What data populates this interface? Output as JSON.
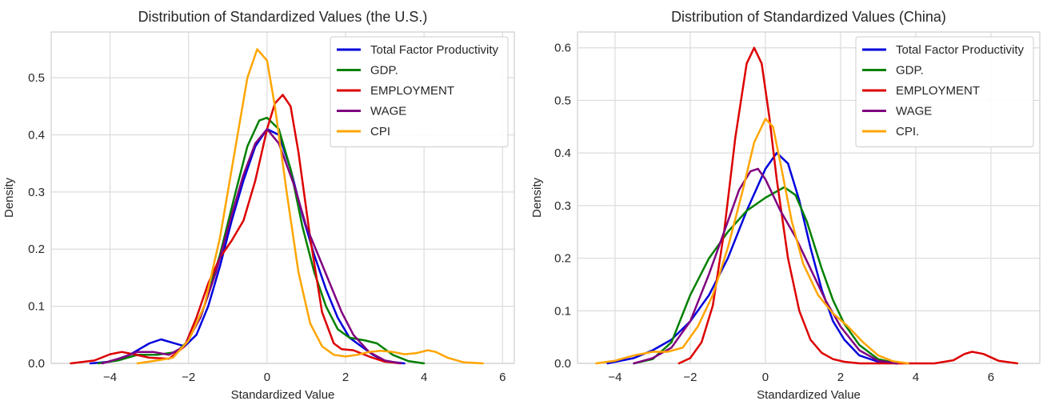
{
  "chart_data": [
    {
      "type": "line",
      "title": "Distribution of Standardized Values (the U.S.)",
      "xlabel": "Standardized Value",
      "ylabel": "Density",
      "xlim": [
        -5.5,
        6.3
      ],
      "ylim": [
        0,
        0.58
      ],
      "xticks": [
        -4,
        -2,
        0,
        2,
        4,
        6
      ],
      "xtick_labels": [
        "−4",
        "−2",
        "0",
        "2",
        "4",
        "6"
      ],
      "yticks": [
        0,
        0.1,
        0.2,
        0.3,
        0.4,
        0.5
      ],
      "ytick_labels": [
        "0.0",
        "0.1",
        "0.2",
        "0.3",
        "0.4",
        "0.5"
      ],
      "grid": true,
      "legend_position": "top-right",
      "series": [
        {
          "name": "Total Factor Productivity",
          "color": "#0000dd",
          "x": [
            -4.5,
            -4.0,
            -3.5,
            -3.0,
            -2.7,
            -2.4,
            -2.1,
            -1.8,
            -1.5,
            -1.2,
            -0.9,
            -0.6,
            -0.3,
            0.0,
            0.3,
            0.6,
            0.9,
            1.2,
            1.5,
            1.8,
            2.1,
            2.4,
            2.7,
            3.0,
            3.5
          ],
          "y": [
            0.0,
            0.003,
            0.015,
            0.035,
            0.042,
            0.036,
            0.03,
            0.05,
            0.1,
            0.17,
            0.25,
            0.32,
            0.38,
            0.41,
            0.4,
            0.34,
            0.26,
            0.19,
            0.13,
            0.08,
            0.045,
            0.03,
            0.015,
            0.004,
            0.0
          ]
        },
        {
          "name": "GDP.",
          "color": "#008000",
          "x": [
            -4.3,
            -3.8,
            -3.3,
            -2.8,
            -2.3,
            -2.0,
            -1.6,
            -1.2,
            -0.8,
            -0.5,
            -0.2,
            0.0,
            0.3,
            0.6,
            0.9,
            1.2,
            1.5,
            1.8,
            2.1,
            2.5,
            2.8,
            3.2,
            3.6,
            4.0
          ],
          "y": [
            0.0,
            0.005,
            0.015,
            0.015,
            0.02,
            0.04,
            0.1,
            0.19,
            0.3,
            0.38,
            0.425,
            0.43,
            0.41,
            0.34,
            0.24,
            0.16,
            0.1,
            0.06,
            0.045,
            0.04,
            0.035,
            0.015,
            0.004,
            0.0
          ]
        },
        {
          "name": "EMPLOYMENT",
          "color": "#dd0000",
          "x": [
            -5.0,
            -4.4,
            -4.0,
            -3.7,
            -3.4,
            -3.0,
            -2.5,
            -2.1,
            -1.8,
            -1.5,
            -1.2,
            -0.9,
            -0.6,
            -0.3,
            0.0,
            0.2,
            0.4,
            0.6,
            0.8,
            1.1,
            1.4,
            1.7,
            1.9,
            2.2,
            2.6,
            3.0,
            3.4
          ],
          "y": [
            0.0,
            0.005,
            0.016,
            0.02,
            0.016,
            0.01,
            0.008,
            0.03,
            0.08,
            0.14,
            0.185,
            0.215,
            0.25,
            0.32,
            0.41,
            0.455,
            0.47,
            0.45,
            0.37,
            0.22,
            0.09,
            0.035,
            0.025,
            0.023,
            0.012,
            0.003,
            0.0
          ]
        },
        {
          "name": "WAGE",
          "color": "#800080",
          "x": [
            -4.2,
            -3.7,
            -3.3,
            -2.9,
            -2.5,
            -2.1,
            -1.7,
            -1.3,
            -0.9,
            -0.6,
            -0.3,
            0.0,
            0.3,
            0.7,
            1.0,
            1.3,
            1.6,
            1.9,
            2.2,
            2.6,
            3.0,
            3.4
          ],
          "y": [
            0.0,
            0.01,
            0.02,
            0.02,
            0.015,
            0.03,
            0.08,
            0.16,
            0.26,
            0.33,
            0.385,
            0.41,
            0.385,
            0.31,
            0.24,
            0.19,
            0.14,
            0.09,
            0.05,
            0.02,
            0.005,
            0.0
          ]
        },
        {
          "name": "CPI",
          "color": "#ffa500",
          "x": [
            -3.3,
            -2.8,
            -2.4,
            -2.0,
            -1.6,
            -1.2,
            -0.8,
            -0.5,
            -0.25,
            0.0,
            0.2,
            0.5,
            0.8,
            1.1,
            1.4,
            1.7,
            2.0,
            2.3,
            2.6,
            2.9,
            3.2,
            3.5,
            3.8,
            4.1,
            4.3,
            4.6,
            5.0,
            5.5
          ],
          "y": [
            0.0,
            0.005,
            0.01,
            0.04,
            0.1,
            0.22,
            0.38,
            0.5,
            0.55,
            0.53,
            0.45,
            0.3,
            0.16,
            0.07,
            0.03,
            0.015,
            0.012,
            0.015,
            0.02,
            0.022,
            0.02,
            0.016,
            0.018,
            0.023,
            0.02,
            0.01,
            0.002,
            0.0
          ]
        }
      ]
    },
    {
      "type": "line",
      "title": "Distribution of Standardized Values (China)",
      "xlabel": "Standardized Value",
      "ylabel": "Density",
      "xlim": [
        -5.0,
        7.3
      ],
      "ylim": [
        0,
        0.63
      ],
      "xticks": [
        -4,
        -2,
        0,
        2,
        4,
        6
      ],
      "xtick_labels": [
        "−4",
        "−2",
        "0",
        "2",
        "4",
        "6"
      ],
      "yticks": [
        0,
        0.1,
        0.2,
        0.3,
        0.4,
        0.5,
        0.6
      ],
      "ytick_labels": [
        "0.0",
        "0.1",
        "0.2",
        "0.3",
        "0.4",
        "0.5",
        "0.6"
      ],
      "grid": true,
      "legend_position": "top-right",
      "series": [
        {
          "name": "Total Factor Productivity",
          "color": "#0000dd",
          "x": [
            -4.2,
            -3.5,
            -3.0,
            -2.5,
            -2.0,
            -1.5,
            -1.0,
            -0.5,
            0.0,
            0.3,
            0.6,
            0.9,
            1.2,
            1.5,
            1.8,
            2.1,
            2.5,
            3.0,
            3.5
          ],
          "y": [
            0.0,
            0.01,
            0.025,
            0.045,
            0.08,
            0.13,
            0.2,
            0.29,
            0.37,
            0.4,
            0.38,
            0.31,
            0.22,
            0.14,
            0.08,
            0.045,
            0.015,
            0.003,
            0.0
          ]
        },
        {
          "name": "GDP.",
          "color": "#008000",
          "x": [
            -3.5,
            -3.0,
            -2.5,
            -2.0,
            -1.5,
            -1.0,
            -0.5,
            0.0,
            0.5,
            0.8,
            1.1,
            1.5,
            1.8,
            2.1,
            2.5,
            3.0,
            3.5
          ],
          "y": [
            0.0,
            0.008,
            0.04,
            0.13,
            0.2,
            0.25,
            0.29,
            0.315,
            0.335,
            0.32,
            0.27,
            0.18,
            0.12,
            0.075,
            0.035,
            0.008,
            0.0
          ]
        },
        {
          "name": "EMPLOYMENT",
          "color": "#dd0000",
          "x": [
            -2.3,
            -2.0,
            -1.7,
            -1.4,
            -1.1,
            -0.8,
            -0.5,
            -0.3,
            -0.1,
            0.1,
            0.3,
            0.6,
            0.9,
            1.2,
            1.5,
            1.8,
            2.1,
            2.5,
            3.0,
            3.5,
            4.5,
            5.0,
            5.3,
            5.5,
            5.8,
            6.2,
            6.7
          ],
          "y": [
            0.0,
            0.01,
            0.04,
            0.11,
            0.25,
            0.43,
            0.57,
            0.6,
            0.57,
            0.47,
            0.35,
            0.2,
            0.1,
            0.045,
            0.02,
            0.008,
            0.003,
            0.0,
            0.0,
            0.0,
            0.0,
            0.006,
            0.018,
            0.022,
            0.018,
            0.005,
            0.0
          ]
        },
        {
          "name": "WAGE",
          "color": "#800080",
          "x": [
            -3.5,
            -3.0,
            -2.5,
            -2.0,
            -1.5,
            -1.0,
            -0.7,
            -0.4,
            -0.2,
            0.0,
            0.4,
            0.8,
            1.2,
            1.6,
            2.0,
            2.5,
            3.0,
            3.5
          ],
          "y": [
            0.0,
            0.01,
            0.03,
            0.08,
            0.17,
            0.27,
            0.33,
            0.365,
            0.37,
            0.35,
            0.29,
            0.24,
            0.18,
            0.12,
            0.07,
            0.025,
            0.005,
            0.0
          ]
        },
        {
          "name": "CPI.",
          "color": "#ffa500",
          "x": [
            -4.5,
            -4.0,
            -3.5,
            -3.0,
            -2.6,
            -2.2,
            -1.8,
            -1.4,
            -1.0,
            -0.6,
            -0.3,
            0.0,
            0.2,
            0.4,
            0.7,
            1.0,
            1.4,
            1.8,
            2.2,
            2.6,
            3.0,
            3.4,
            3.8
          ],
          "y": [
            0.0,
            0.005,
            0.015,
            0.022,
            0.022,
            0.03,
            0.07,
            0.13,
            0.22,
            0.33,
            0.42,
            0.465,
            0.45,
            0.38,
            0.27,
            0.19,
            0.13,
            0.095,
            0.07,
            0.04,
            0.015,
            0.004,
            0.0
          ]
        }
      ]
    }
  ]
}
